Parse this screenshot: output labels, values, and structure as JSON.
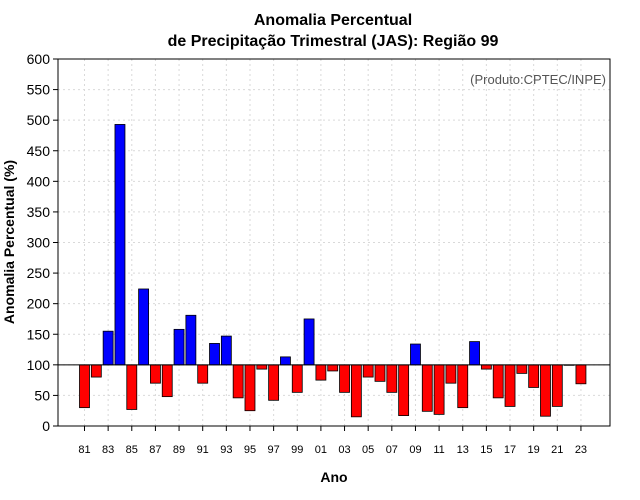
{
  "chart_data": {
    "type": "bar",
    "title_line1": "Anomalia Percentual",
    "title_line2": "de Precipitação Trimestral (JAS): Região 99",
    "xlabel": "Ano",
    "ylabel": "Anomalia Percentual (%)",
    "annotation": "(Produto:CPTEC/INPE)",
    "ylim": [
      0,
      600
    ],
    "yticks": [
      0,
      50,
      100,
      150,
      200,
      250,
      300,
      350,
      400,
      450,
      500,
      550,
      600
    ],
    "baseline": 100,
    "grid": true,
    "xtick_labels": [
      "81",
      "83",
      "85",
      "87",
      "89",
      "91",
      "93",
      "95",
      "97",
      "99",
      "01",
      "03",
      "05",
      "07",
      "09",
      "11",
      "13",
      "15",
      "17",
      "19",
      "21",
      "23"
    ],
    "categories": [
      "1981",
      "1982",
      "1983",
      "1984",
      "1985",
      "1986",
      "1987",
      "1988",
      "1989",
      "1990",
      "1991",
      "1992",
      "1993",
      "1994",
      "1995",
      "1996",
      "1997",
      "1998",
      "1999",
      "2000",
      "2001",
      "2002",
      "2003",
      "2004",
      "2005",
      "2006",
      "2007",
      "2008",
      "2009",
      "2010",
      "2011",
      "2012",
      "2013",
      "2014",
      "2015",
      "2016",
      "2017",
      "2018",
      "2019",
      "2020",
      "2021",
      "2022",
      "2023"
    ],
    "values": [
      30,
      80,
      155,
      493,
      27,
      224,
      70,
      48,
      158,
      181,
      70,
      135,
      147,
      46,
      25,
      93,
      42,
      113,
      55,
      175,
      75,
      90,
      55,
      15,
      80,
      73,
      55,
      17,
      134,
      24,
      19,
      70,
      30,
      138,
      93,
      46,
      32,
      86,
      63,
      16,
      32,
      100,
      69
    ],
    "colors": {
      "above": "#0000ff",
      "below": "#ff0000",
      "axis": "#000000",
      "grid": "#d9d9d9",
      "annotation": "#555555"
    }
  }
}
